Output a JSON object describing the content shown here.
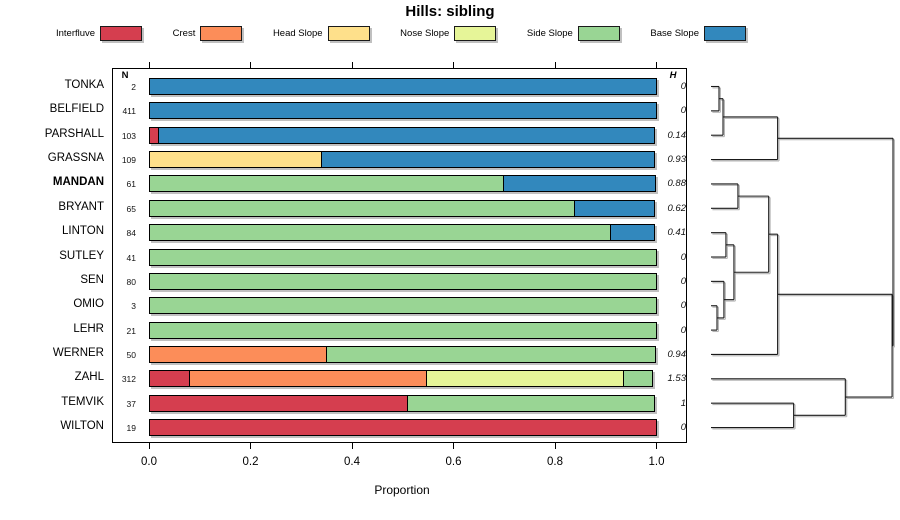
{
  "title": "Hills: sibling",
  "legend": {
    "items": [
      {
        "label": "Interfluve",
        "color": "#D53E4F"
      },
      {
        "label": "Crest",
        "color": "#FC8D59"
      },
      {
        "label": "Head Slope",
        "color": "#FEE08B"
      },
      {
        "label": "Nose Slope",
        "color": "#E6F598"
      },
      {
        "label": "Side Slope",
        "color": "#99D594"
      },
      {
        "label": "Base Slope",
        "color": "#3288BD"
      }
    ]
  },
  "chart_data": {
    "type": "bar",
    "orientation": "horizontal-stacked",
    "title": "Hills: sibling",
    "xlabel": "Proportion",
    "xlim": [
      0,
      1
    ],
    "xticks": [
      0,
      0.2,
      0.4,
      0.6,
      0.8,
      1.0
    ],
    "xtick_labels": [
      "0.0",
      "0.2",
      "0.4",
      "0.6",
      "0.8",
      "1.0"
    ],
    "n_column_header": "N",
    "h_column_header": "H",
    "categories": [
      "Interfluve",
      "Crest",
      "Head Slope",
      "Nose Slope",
      "Side Slope",
      "Base Slope"
    ],
    "colors": {
      "Interfluve": "#D53E4F",
      "Crest": "#FC8D59",
      "Head Slope": "#FEE08B",
      "Nose Slope": "#E6F598",
      "Side Slope": "#99D594",
      "Base Slope": "#3288BD"
    },
    "rows": [
      {
        "name": "TONKA",
        "bold": false,
        "n": "2",
        "h": "0",
        "segments": [
          {
            "class": "Base Slope",
            "value": 1.0
          }
        ]
      },
      {
        "name": "BELFIELD",
        "bold": false,
        "n": "411",
        "h": "0",
        "segments": [
          {
            "class": "Base Slope",
            "value": 1.0
          }
        ]
      },
      {
        "name": "PARSHALL",
        "bold": false,
        "n": "103",
        "h": "0.14",
        "segments": [
          {
            "class": "Interfluve",
            "value": 0.02
          },
          {
            "class": "Base Slope",
            "value": 0.98
          }
        ]
      },
      {
        "name": "GRASSNA",
        "bold": false,
        "n": "109",
        "h": "0.93",
        "segments": [
          {
            "class": "Head Slope",
            "value": 0.34
          },
          {
            "class": "Base Slope",
            "value": 0.66
          }
        ]
      },
      {
        "name": "MANDAN",
        "bold": true,
        "n": "61",
        "h": "0.88",
        "segments": [
          {
            "class": "Side Slope",
            "value": 0.7
          },
          {
            "class": "Base Slope",
            "value": 0.3
          }
        ]
      },
      {
        "name": "BRYANT",
        "bold": false,
        "n": "65",
        "h": "0.62",
        "segments": [
          {
            "class": "Side Slope",
            "value": 0.84
          },
          {
            "class": "Base Slope",
            "value": 0.16
          }
        ]
      },
      {
        "name": "LINTON",
        "bold": false,
        "n": "84",
        "h": "0.41",
        "segments": [
          {
            "class": "Side Slope",
            "value": 0.91
          },
          {
            "class": "Base Slope",
            "value": 0.09
          }
        ]
      },
      {
        "name": "SUTLEY",
        "bold": false,
        "n": "41",
        "h": "0",
        "segments": [
          {
            "class": "Side Slope",
            "value": 1.0
          }
        ]
      },
      {
        "name": "SEN",
        "bold": false,
        "n": "80",
        "h": "0",
        "segments": [
          {
            "class": "Side Slope",
            "value": 1.0
          }
        ]
      },
      {
        "name": "OMIO",
        "bold": false,
        "n": "3",
        "h": "0",
        "segments": [
          {
            "class": "Side Slope",
            "value": 1.0
          }
        ]
      },
      {
        "name": "LEHR",
        "bold": false,
        "n": "21",
        "h": "0",
        "segments": [
          {
            "class": "Side Slope",
            "value": 1.0
          }
        ]
      },
      {
        "name": "WERNER",
        "bold": false,
        "n": "50",
        "h": "0.94",
        "segments": [
          {
            "class": "Crest",
            "value": 0.35
          },
          {
            "class": "Side Slope",
            "value": 0.65
          }
        ]
      },
      {
        "name": "ZAHL",
        "bold": false,
        "n": "312",
        "h": "1.53",
        "segments": [
          {
            "class": "Interfluve",
            "value": 0.08
          },
          {
            "class": "Crest",
            "value": 0.47
          },
          {
            "class": "Nose Slope",
            "value": 0.39
          },
          {
            "class": "Side Slope",
            "value": 0.06
          }
        ]
      },
      {
        "name": "TEMVIK",
        "bold": false,
        "n": "37",
        "h": "1",
        "segments": [
          {
            "class": "Interfluve",
            "value": 0.51
          },
          {
            "class": "Side Slope",
            "value": 0.49
          }
        ]
      },
      {
        "name": "WILTON",
        "bold": false,
        "n": "19",
        "h": "0",
        "segments": [
          {
            "class": "Interfluve",
            "value": 1.0
          }
        ]
      }
    ],
    "dendrogram": {
      "merges": [
        {
          "id": "m1",
          "children": [
            "TONKA",
            "BELFIELD"
          ],
          "height": 0.044
        },
        {
          "id": "m2",
          "children": [
            "m1",
            "PARSHALL"
          ],
          "height": 0.066
        },
        {
          "id": "m3",
          "children": [
            "m2",
            "GRASSNA"
          ],
          "height": 0.366
        },
        {
          "id": "m4",
          "children": [
            "MANDAN",
            "BRYANT"
          ],
          "height": 0.148
        },
        {
          "id": "m5",
          "children": [
            "LINTON",
            "SUTLEY"
          ],
          "height": 0.082
        },
        {
          "id": "m6",
          "children": [
            "OMIO",
            "LEHR"
          ],
          "height": 0.033
        },
        {
          "id": "m7",
          "children": [
            "SEN",
            "m6"
          ],
          "height": 0.071
        },
        {
          "id": "m8",
          "children": [
            "m5",
            "m7"
          ],
          "height": 0.126
        },
        {
          "id": "m9",
          "children": [
            "m4",
            "m8"
          ],
          "height": 0.317
        },
        {
          "id": "m10",
          "children": [
            "m9",
            "WERNER"
          ],
          "height": 0.366
        },
        {
          "id": "m11",
          "children": [
            "TEMVIK",
            "WILTON"
          ],
          "height": 0.454
        },
        {
          "id": "m12",
          "children": [
            "ZAHL",
            "m11"
          ],
          "height": 0.738
        },
        {
          "id": "m13",
          "children": [
            "m10",
            "m12"
          ],
          "height": 0.995
        },
        {
          "id": "m14",
          "children": [
            "m3",
            "m13"
          ],
          "height": 1.0
        }
      ]
    }
  }
}
